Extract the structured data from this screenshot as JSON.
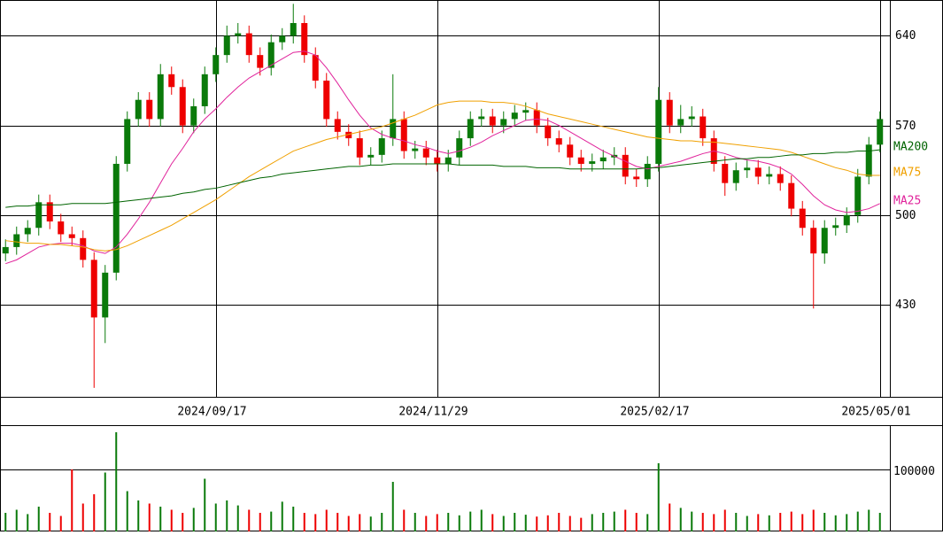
{
  "chart_data": {
    "type": "candlestick",
    "categories": [
      null,
      null,
      null,
      null,
      null,
      null,
      null,
      null,
      null,
      null,
      null,
      null,
      null,
      null,
      null,
      null,
      null,
      null,
      null,
      "2024/09/17",
      null,
      null,
      null,
      null,
      null,
      null,
      null,
      null,
      null,
      null,
      null,
      null,
      null,
      null,
      null,
      null,
      null,
      null,
      null,
      "2024/11/29",
      null,
      null,
      null,
      null,
      null,
      null,
      null,
      null,
      null,
      null,
      null,
      null,
      null,
      null,
      null,
      null,
      null,
      null,
      null,
      "2025/02/17",
      null,
      null,
      null,
      null,
      null,
      null,
      null,
      null,
      null,
      null,
      null,
      null,
      null,
      null,
      null,
      null,
      null,
      null,
      null,
      "2025/05/01"
    ],
    "candles": {
      "open": [
        470,
        475,
        485,
        490,
        510,
        495,
        485,
        482,
        465,
        420,
        455,
        540,
        575,
        590,
        575,
        610,
        600,
        570,
        585,
        610,
        625,
        640,
        642,
        625,
        615,
        635,
        640,
        650,
        625,
        605,
        575,
        565,
        560,
        545,
        547,
        560,
        575,
        550,
        552,
        545,
        540,
        545,
        560,
        575,
        577,
        570,
        575,
        580,
        582,
        570,
        560,
        555,
        545,
        540,
        542,
        545,
        547,
        530,
        528,
        540,
        590,
        570,
        575,
        577,
        560,
        540,
        525,
        535,
        537,
        530,
        532,
        525,
        505,
        490,
        470,
        490,
        492,
        500,
        530,
        555
      ],
      "high": [
        481,
        491,
        496,
        516,
        516,
        501,
        491,
        488,
        471,
        461,
        546,
        581,
        596,
        596,
        618,
        616,
        606,
        591,
        616,
        631,
        648,
        650,
        648,
        631,
        641,
        646,
        665,
        656,
        631,
        611,
        581,
        571,
        566,
        553,
        566,
        610,
        581,
        558,
        558,
        551,
        551,
        566,
        581,
        583,
        583,
        581,
        586,
        588,
        588,
        576,
        566,
        561,
        551,
        548,
        551,
        553,
        553,
        536,
        546,
        600,
        596,
        586,
        585,
        583,
        566,
        546,
        541,
        543,
        543,
        538,
        538,
        531,
        511,
        496,
        496,
        498,
        506,
        536,
        561,
        581
      ],
      "low": [
        464,
        469,
        479,
        484,
        489,
        479,
        476,
        459,
        365,
        400,
        449,
        534,
        569,
        569,
        569,
        594,
        564,
        564,
        579,
        604,
        619,
        634,
        619,
        609,
        609,
        629,
        634,
        619,
        599,
        569,
        559,
        554,
        539,
        539,
        541,
        554,
        544,
        544,
        539,
        534,
        534,
        539,
        554,
        569,
        564,
        564,
        569,
        574,
        564,
        554,
        549,
        539,
        534,
        534,
        536,
        539,
        524,
        522,
        522,
        534,
        564,
        564,
        569,
        554,
        534,
        515,
        519,
        529,
        524,
        524,
        519,
        499,
        484,
        427,
        462,
        484,
        486,
        494,
        524,
        549
      ],
      "close": [
        475,
        485,
        490,
        510,
        495,
        485,
        482,
        465,
        420,
        455,
        540,
        575,
        590,
        575,
        610,
        600,
        570,
        585,
        610,
        625,
        640,
        642,
        625,
        615,
        635,
        640,
        650,
        625,
        605,
        575,
        565,
        560,
        545,
        547,
        560,
        575,
        550,
        552,
        545,
        540,
        545,
        560,
        575,
        577,
        570,
        575,
        580,
        582,
        570,
        560,
        555,
        545,
        540,
        542,
        545,
        547,
        530,
        528,
        540,
        590,
        570,
        575,
        577,
        560,
        540,
        525,
        535,
        537,
        530,
        532,
        525,
        505,
        490,
        470,
        490,
        492,
        500,
        530,
        555,
        575
      ]
    },
    "up_color": "#0a7a0a",
    "down_color": "#ee0000",
    "series": [
      {
        "name": "MA25",
        "color": "#e0239b",
        "values": [
          462,
          465,
          470,
          475,
          477,
          478,
          478,
          476,
          472,
          470,
          475,
          485,
          497,
          510,
          525,
          540,
          552,
          565,
          575,
          583,
          592,
          600,
          607,
          612,
          617,
          622,
          627,
          628,
          625,
          615,
          603,
          590,
          578,
          568,
          563,
          560,
          558,
          555,
          553,
          550,
          548,
          550,
          553,
          557,
          562,
          566,
          570,
          574,
          575,
          574,
          570,
          565,
          560,
          555,
          550,
          546,
          542,
          538,
          536,
          538,
          540,
          542,
          545,
          548,
          550,
          548,
          545,
          543,
          542,
          540,
          537,
          532,
          524,
          515,
          508,
          504,
          502,
          503,
          505,
          509
        ]
      },
      {
        "name": "MA75",
        "color": "#f0a000",
        "values": [
          480,
          479,
          478,
          478,
          477,
          477,
          476,
          475,
          473,
          472,
          473,
          476,
          480,
          484,
          488,
          492,
          497,
          502,
          507,
          512,
          518,
          524,
          530,
          535,
          540,
          545,
          550,
          553,
          556,
          559,
          561,
          563,
          565,
          567,
          569,
          572,
          575,
          578,
          582,
          586,
          588,
          589,
          589,
          589,
          588,
          588,
          587,
          585,
          582,
          579,
          577,
          575,
          573,
          571,
          569,
          567,
          565,
          563,
          561,
          560,
          559,
          558,
          558,
          557,
          557,
          556,
          555,
          554,
          553,
          552,
          551,
          549,
          546,
          543,
          540,
          537,
          535,
          532,
          531,
          531
        ]
      },
      {
        "name": "MA200",
        "color": "#006400",
        "values": [
          506,
          507,
          507,
          508,
          508,
          508,
          509,
          509,
          509,
          509,
          510,
          511,
          512,
          513,
          514,
          515,
          517,
          518,
          520,
          521,
          523,
          525,
          527,
          529,
          530,
          532,
          533,
          534,
          535,
          536,
          537,
          538,
          538,
          539,
          539,
          540,
          540,
          540,
          540,
          540,
          540,
          539,
          539,
          539,
          539,
          538,
          538,
          538,
          537,
          537,
          537,
          536,
          536,
          536,
          536,
          536,
          536,
          536,
          537,
          537,
          538,
          539,
          540,
          541,
          542,
          543,
          544,
          544,
          545,
          545,
          546,
          547,
          547,
          548,
          548,
          549,
          549,
          550,
          550,
          551
        ]
      }
    ],
    "ylim": [
      358,
      668
    ],
    "yticks": [
      430,
      500,
      570,
      640
    ],
    "grid": true,
    "volume": {
      "values": [
        30000,
        35000,
        28000,
        40000,
        30000,
        25000,
        100000,
        45000,
        60000,
        95000,
        160000,
        65000,
        50000,
        45000,
        40000,
        35000,
        30000,
        38000,
        85000,
        45000,
        50000,
        42000,
        35000,
        30000,
        32000,
        48000,
        40000,
        30000,
        28000,
        35000,
        30000,
        25000,
        28000,
        24000,
        30000,
        80000,
        35000,
        30000,
        25000,
        28000,
        30000,
        26000,
        32000,
        35000,
        28000,
        25000,
        30000,
        27000,
        24000,
        26000,
        30000,
        25000,
        22000,
        28000,
        30000,
        32000,
        35000,
        30000,
        28000,
        110000,
        45000,
        38000,
        32000,
        30000,
        28000,
        35000,
        30000,
        25000,
        28000,
        26000,
        30000,
        32000,
        28000,
        35000,
        30000,
        26000,
        28000,
        32000,
        35000,
        30000
      ],
      "ylim": [
        0,
        171400
      ],
      "yticks": [
        100000
      ]
    }
  }
}
